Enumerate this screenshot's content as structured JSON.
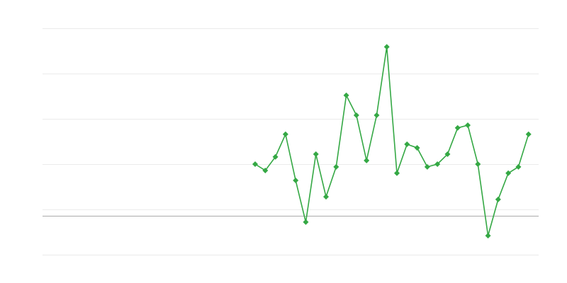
{
  "chart_data": {
    "type": "line",
    "title": "",
    "xlabel": "",
    "ylabel": "",
    "x_domain": [
      0,
      49
    ],
    "x": [
      21,
      22,
      23,
      24,
      25,
      26,
      27,
      28,
      29,
      30,
      31,
      32,
      33,
      34,
      35,
      36,
      37,
      38,
      39,
      40,
      41,
      42,
      43,
      44,
      45,
      46,
      47,
      48
    ],
    "ylim": [
      -0.86,
      4.14
    ],
    "gridlines": [
      -0.86,
      0.14,
      1.14,
      2.14,
      3.14,
      4.14
    ],
    "baseline": 0,
    "grid": true,
    "legend": "none",
    "series": [
      {
        "color": "#34a844",
        "marker": "diamond",
        "values": [
          1.14,
          1.0,
          1.3,
          1.8,
          0.78,
          -0.14,
          1.36,
          0.42,
          1.08,
          2.66,
          2.22,
          1.22,
          2.22,
          3.73,
          0.94,
          1.58,
          1.5,
          1.08,
          1.14,
          1.36,
          1.94,
          2.0,
          1.14,
          -0.44,
          0.36,
          0.94,
          1.08,
          1.8
        ]
      }
    ],
    "colors": {
      "grid": "#ebebeb",
      "baseline": "#aaaaaa"
    }
  }
}
